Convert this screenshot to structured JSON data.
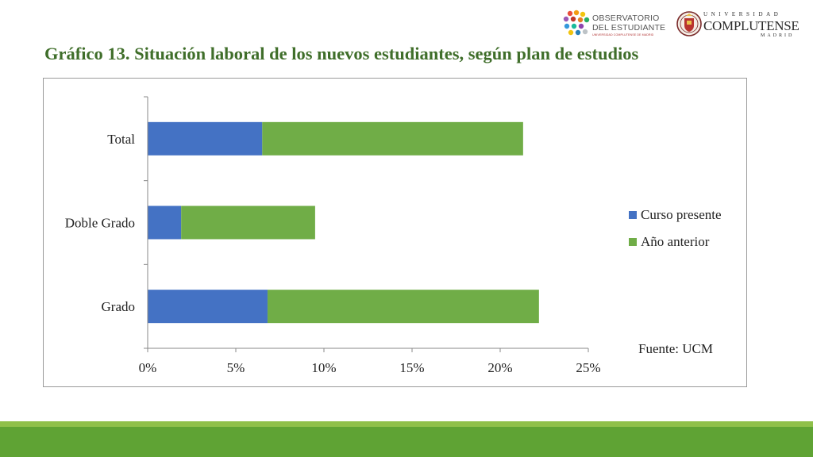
{
  "page": {
    "title": "Gráfico 13. Situación laboral de los nuevos estudiantes, según plan de estudios"
  },
  "logos": {
    "observatorio": {
      "line1": "OBSERVATORIO",
      "line2": "DEL ESTUDIANTE",
      "line3": "UNIVERSIDAD COMPLUTENSE DE MADRID"
    },
    "ucm": {
      "line1": "UNIVERSIDAD",
      "line2": "COMPLUTENSE",
      "line3": "MADRID"
    }
  },
  "chart_data": {
    "type": "bar",
    "orientation": "horizontal",
    "stacked": true,
    "categories": [
      "Total",
      "Doble Grado",
      "Grado"
    ],
    "series": [
      {
        "name": "Curso presente",
        "values": [
          6.5,
          1.9,
          6.8
        ],
        "color": "#4472c4"
      },
      {
        "name": "Año anterior",
        "values": [
          14.8,
          7.6,
          15.4
        ],
        "color": "#70ad47"
      }
    ],
    "xlim": [
      0,
      25
    ],
    "xticks": [
      "0%",
      "5%",
      "10%",
      "15%",
      "20%",
      "25%"
    ],
    "grid": false,
    "legend": "right",
    "annotation": "Fuente: UCM"
  }
}
